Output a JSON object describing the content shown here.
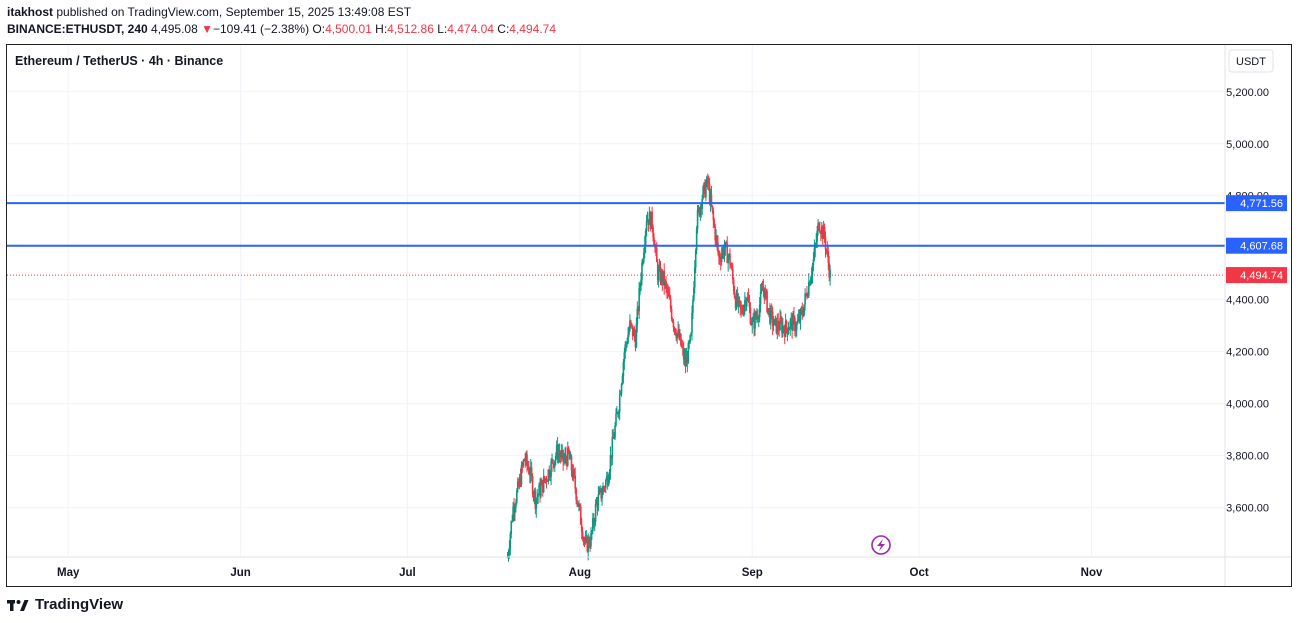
{
  "header": {
    "author": "itakhost",
    "published_text": "published on TradingView.com, September 15, 2025 13:49:08 EST",
    "symbol": "BINANCE:ETHUSDT, 240",
    "last": "4,495.08",
    "arrow": "▼",
    "change": "−109.41 (−2.38%)",
    "o_label": "O:",
    "o_value": "4,500.01",
    "h_label": "H:",
    "h_value": "4,512.86",
    "l_label": "L:",
    "l_value": "4,474.04",
    "c_label": "C:",
    "c_value": "4,494.74"
  },
  "chart_title": "Ethereum / TetherUS · 4h · Binance",
  "currency": "USDT",
  "brand": "TradingView",
  "colors": {
    "up": "#089981",
    "down": "#f23645",
    "level_line": "#2962ff",
    "last_price": "#f23645",
    "grid": "#f0f3fa",
    "alert_icon": "#9c27b0"
  },
  "chart_data": {
    "type": "candlestick",
    "title": "Ethereum / TetherUS · 4h · Binance",
    "y_ticks": [
      "5,200.00",
      "5,000.00",
      "4,800.00",
      "4,400.00",
      "4,200.00",
      "4,000.00",
      "3,800.00",
      "3,600.00"
    ],
    "y_tick_values": [
      5200,
      5000,
      4800,
      4400,
      4200,
      4000,
      3800,
      3600
    ],
    "x_ticks": [
      "May",
      "Jun",
      "Jul",
      "Aug",
      "Sep",
      "Oct",
      "Nov"
    ],
    "ylim": [
      3410,
      5380
    ],
    "xlim": [
      "2025-04-20",
      "2025-11-25"
    ],
    "grid": true,
    "horizontal_levels": [
      {
        "value": 4771.56,
        "label": "4,771.56"
      },
      {
        "value": 4607.68,
        "label": "4,607.68"
      }
    ],
    "last_price": {
      "value": 4494.74,
      "label": "4,494.74"
    },
    "price_path": [
      [
        "2025-07-19",
        3410
      ],
      [
        "2025-07-20",
        3600
      ],
      [
        "2025-07-21",
        3680
      ],
      [
        "2025-07-22",
        3790
      ],
      [
        "2025-07-23",
        3740
      ],
      [
        "2025-07-24",
        3630
      ],
      [
        "2025-07-26",
        3720
      ],
      [
        "2025-07-28",
        3820
      ],
      [
        "2025-07-29",
        3780
      ],
      [
        "2025-07-30",
        3800
      ],
      [
        "2025-07-31",
        3700
      ],
      [
        "2025-08-02",
        3450
      ],
      [
        "2025-08-03",
        3480
      ],
      [
        "2025-08-04",
        3620
      ],
      [
        "2025-08-05",
        3660
      ],
      [
        "2025-08-06",
        3720
      ],
      [
        "2025-08-07",
        3860
      ],
      [
        "2025-08-08",
        4000
      ],
      [
        "2025-08-09",
        4200
      ],
      [
        "2025-08-10",
        4300
      ],
      [
        "2025-08-11",
        4250
      ],
      [
        "2025-08-12",
        4500
      ],
      [
        "2025-08-13",
        4720
      ],
      [
        "2025-08-14",
        4700
      ],
      [
        "2025-08-15",
        4500
      ],
      [
        "2025-08-16",
        4480
      ],
      [
        "2025-08-17",
        4400
      ],
      [
        "2025-08-18",
        4300
      ],
      [
        "2025-08-19",
        4240
      ],
      [
        "2025-08-20",
        4150
      ],
      [
        "2025-08-21",
        4250
      ],
      [
        "2025-08-22",
        4700
      ],
      [
        "2025-08-23",
        4800
      ],
      [
        "2025-08-24",
        4850
      ],
      [
        "2025-08-25",
        4700
      ],
      [
        "2025-08-26",
        4560
      ],
      [
        "2025-08-27",
        4600
      ],
      [
        "2025-08-28",
        4550
      ],
      [
        "2025-08-29",
        4400
      ],
      [
        "2025-08-30",
        4350
      ],
      [
        "2025-08-31",
        4420
      ],
      [
        "2025-09-01",
        4300
      ],
      [
        "2025-09-02",
        4350
      ],
      [
        "2025-09-03",
        4450
      ],
      [
        "2025-09-04",
        4350
      ],
      [
        "2025-09-05",
        4300
      ],
      [
        "2025-09-06",
        4300
      ],
      [
        "2025-09-07",
        4290
      ],
      [
        "2025-09-08",
        4310
      ],
      [
        "2025-09-09",
        4300
      ],
      [
        "2025-09-10",
        4350
      ],
      [
        "2025-09-11",
        4450
      ],
      [
        "2025-09-12",
        4550
      ],
      [
        "2025-09-13",
        4700
      ],
      [
        "2025-09-14",
        4640
      ],
      [
        "2025-09-15",
        4494.74
      ]
    ]
  }
}
